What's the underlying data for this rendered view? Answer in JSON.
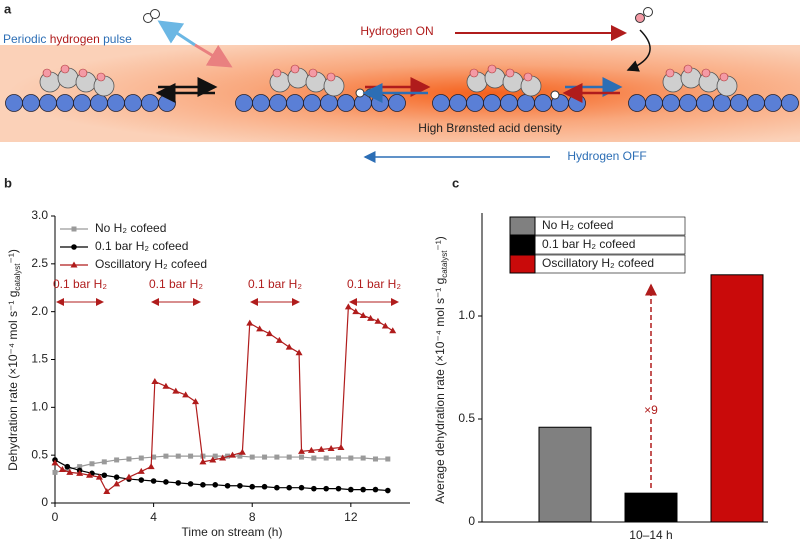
{
  "schematic": {
    "label": "a",
    "pulse": [
      "Periodic",
      "hydrogen",
      "pulse"
    ],
    "on": "Hydrogen ON",
    "off": "Hydrogen OFF",
    "acid": "High Brønsted acid density"
  },
  "chart_data": [
    {
      "panel": "b",
      "type": "line",
      "xlabel": "Time on stream (h)",
      "ylabel_parts": [
        "Dehydration rate (×10⁻⁴ mol s⁻¹ g",
        "catalyst",
        "⁻¹)"
      ],
      "xlim": [
        0,
        14.4
      ],
      "xticks": [
        0,
        4,
        8,
        12
      ],
      "ylim": [
        0,
        3
      ],
      "yticks": [
        0,
        0.5,
        {
          "value": 1,
          "label": "1.0"
        },
        1.5,
        {
          "value": 2,
          "label": "2.0"
        },
        2.5,
        {
          "value": 3,
          "label": "3.0"
        }
      ],
      "series": [
        {
          "name": "No H₂ cofeed",
          "color": "#9a9a9a",
          "marker": "square",
          "x": [
            0,
            0.5,
            1,
            1.5,
            2,
            2.5,
            3,
            3.5,
            4,
            4.5,
            5,
            5.5,
            6,
            6.5,
            7,
            7.5,
            8,
            8.5,
            9,
            9.5,
            10,
            10.5,
            11,
            11.5,
            12,
            12.5,
            13,
            13.5
          ],
          "values": [
            0.32,
            0.35,
            0.38,
            0.41,
            0.43,
            0.45,
            0.46,
            0.47,
            0.48,
            0.49,
            0.49,
            0.49,
            0.49,
            0.49,
            0.49,
            0.49,
            0.48,
            0.48,
            0.48,
            0.48,
            0.48,
            0.47,
            0.47,
            0.47,
            0.47,
            0.47,
            0.46,
            0.46
          ]
        },
        {
          "name": "0.1 bar H₂ cofeed",
          "color": "#000000",
          "marker": "circle",
          "x": [
            0,
            0.5,
            1,
            1.5,
            2,
            2.5,
            3,
            3.5,
            4,
            4.5,
            5,
            5.5,
            6,
            6.5,
            7,
            7.5,
            8,
            8.5,
            9,
            9.5,
            10,
            10.5,
            11,
            11.5,
            12,
            12.5,
            13,
            13.5
          ],
          "values": [
            0.45,
            0.38,
            0.34,
            0.31,
            0.29,
            0.27,
            0.25,
            0.24,
            0.23,
            0.22,
            0.21,
            0.2,
            0.19,
            0.19,
            0.18,
            0.18,
            0.17,
            0.17,
            0.16,
            0.16,
            0.16,
            0.15,
            0.15,
            0.15,
            0.14,
            0.14,
            0.14,
            0.13
          ]
        },
        {
          "name": "Oscillatory H₂ cofeed",
          "color": "#b01c1c",
          "marker": "triangle",
          "x": [
            0,
            0.3,
            0.6,
            1,
            1.4,
            1.8,
            2.1,
            2.5,
            3,
            3.5,
            3.9,
            4.05,
            4.5,
            4.9,
            5.3,
            5.7,
            6,
            6.4,
            6.8,
            7.2,
            7.6,
            7.9,
            8.3,
            8.7,
            9.1,
            9.5,
            9.9,
            10,
            10.4,
            10.8,
            11.2,
            11.6,
            11.9,
            12.2,
            12.5,
            12.8,
            13.1,
            13.4,
            13.7
          ],
          "values": [
            0.42,
            0.35,
            0.32,
            0.31,
            0.29,
            0.27,
            0.12,
            0.2,
            0.27,
            0.33,
            0.38,
            1.27,
            1.22,
            1.17,
            1.13,
            1.06,
            0.43,
            0.45,
            0.47,
            0.5,
            0.53,
            1.88,
            1.82,
            1.77,
            1.7,
            1.63,
            1.57,
            0.54,
            0.55,
            0.56,
            0.57,
            0.58,
            2.05,
            2.0,
            1.96,
            1.93,
            1.9,
            1.85,
            1.8
          ]
        }
      ],
      "annotations": [
        "0.1 bar H₂",
        "0.1 bar H₂",
        "0.1 bar H₂",
        "0.1 bar H₂"
      ]
    },
    {
      "panel": "c",
      "type": "bar",
      "ylabel_parts": [
        "Average dehydration rate (×10⁻⁴ mol s⁻¹ g",
        "catalyst",
        "⁻¹)"
      ],
      "categories": [
        "10–14 h"
      ],
      "ylim": [
        0,
        1.5
      ],
      "yticks": [
        0,
        0.5,
        {
          "value": 1,
          "label": "1.0"
        }
      ],
      "series": [
        {
          "name": "No H₂ cofeed",
          "color": "#808080",
          "values": [
            0.46
          ]
        },
        {
          "name": "0.1 bar H₂ cofeed",
          "color": "#000000",
          "values": [
            0.14
          ]
        },
        {
          "name": "Oscillatory H₂ cofeed",
          "color": "#c90a0a",
          "values": [
            1.2
          ]
        }
      ],
      "annotation": "×9"
    }
  ]
}
